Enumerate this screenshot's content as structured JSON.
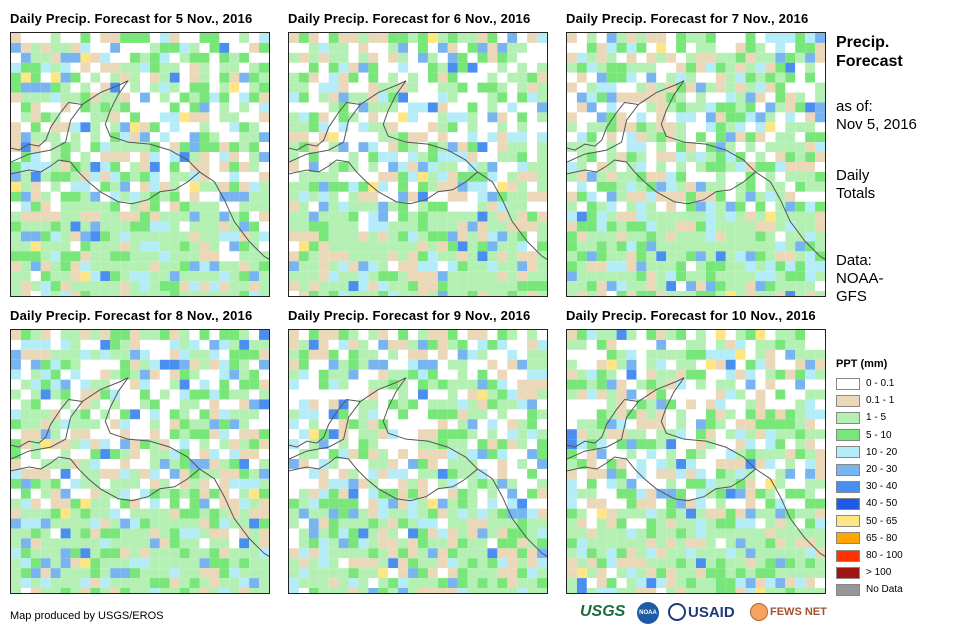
{
  "panels": [
    {
      "title": "Daily Precip. Forecast for 5 Nov., 2016"
    },
    {
      "title": "Daily Precip. Forecast for 6 Nov., 2016"
    },
    {
      "title": "Daily Precip. Forecast for 7 Nov., 2016"
    },
    {
      "title": "Daily Precip. Forecast for 8 Nov., 2016"
    },
    {
      "title": "Daily Precip. Forecast for 9 Nov., 2016"
    },
    {
      "title": "Daily Precip. Forecast for 10 Nov., 2016"
    }
  ],
  "sidebar": {
    "title_line1": "Precip.",
    "title_line2": "Forecast",
    "asof_line1": "as of:",
    "asof_line2": "Nov 5, 2016",
    "totals_line1": "Daily",
    "totals_line2": "Totals",
    "data_line1": "Data:",
    "data_line2": "NOAA-",
    "data_line3": "GFS"
  },
  "legend": {
    "title": "PPT (mm)",
    "items": [
      {
        "label": "0 - 0.1",
        "color": "#ffffff"
      },
      {
        "label": "0.1 - 1",
        "color": "#ead8b8"
      },
      {
        "label": "1 - 5",
        "color": "#b4f0b4"
      },
      {
        "label": "5 - 10",
        "color": "#78e678"
      },
      {
        "label": "10 - 20",
        "color": "#b4ecf8"
      },
      {
        "label": "20 - 30",
        "color": "#78b4f0"
      },
      {
        "label": "30 - 40",
        "color": "#4a8ef0"
      },
      {
        "label": "40 - 50",
        "color": "#1e5ae6"
      },
      {
        "label": "50 - 65",
        "color": "#ffe682"
      },
      {
        "label": "65 - 80",
        "color": "#ffa500"
      },
      {
        "label": "80 - 100",
        "color": "#ff3200"
      },
      {
        "label": "> 100",
        "color": "#a01414"
      },
      {
        "label": "No Data",
        "color": "#969696"
      }
    ]
  },
  "footer": {
    "credit": "Map produced by USGS/EROS"
  },
  "logos": {
    "usgs": "USGS",
    "noaa": "NOAA",
    "usaid": "USAID",
    "fewsnet": "FEWS NET"
  }
}
